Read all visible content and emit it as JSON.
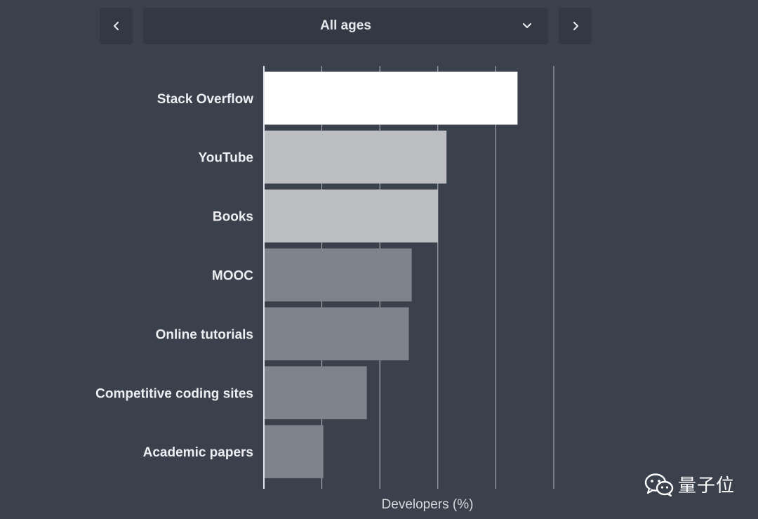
{
  "controls": {
    "age_filter": {
      "selected": "All ages"
    },
    "prev_icon": "chevron-left-icon",
    "next_icon": "chevron-right-icon",
    "dropdown_icon": "chevron-down-icon"
  },
  "chart_data": {
    "type": "bar",
    "orientation": "horizontal",
    "categories": [
      "Stack Overflow",
      "YouTube",
      "Books",
      "MOOC",
      "Online tutorials",
      "Competitive coding sites",
      "Academic papers"
    ],
    "values": [
      87.5,
      63,
      60,
      51,
      50,
      35.5,
      20.5
    ],
    "xlabel": "Developers (%)",
    "xlim": [
      0,
      100
    ],
    "gridlines_at": [
      0,
      20,
      40,
      60,
      80,
      100
    ],
    "tick_labels_shown": false,
    "grid": true,
    "bar_colors": [
      "#ffffff",
      "#bdbec2",
      "#bdbec2",
      "#7f838b",
      "#7f838b",
      "#7f838b",
      "#7f838b"
    ],
    "background_color": "#3b414c"
  },
  "watermark": {
    "text": "量子位",
    "icon": "wechat-icon"
  }
}
